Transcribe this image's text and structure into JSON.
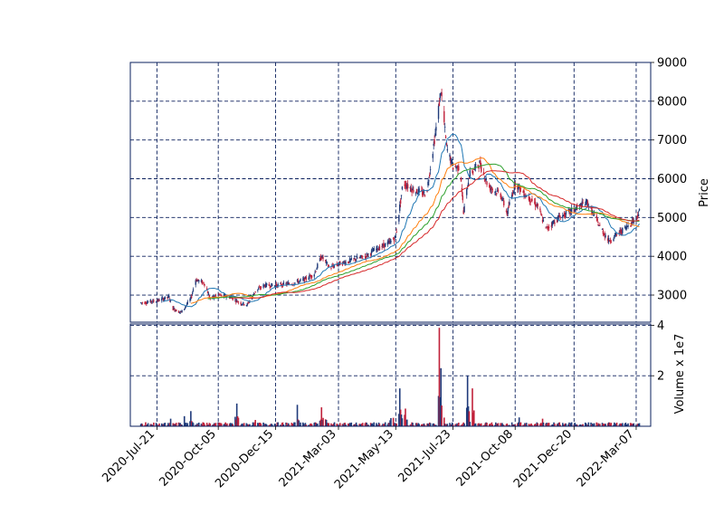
{
  "chart_data": {
    "type": "candlestick",
    "style": "mplfinance-like, dashed grid, red/blue candles",
    "colors": {
      "frame": "#0a1f5c",
      "grid": "#0a1f5c",
      "up": "#1f3a7a",
      "down": "#c0213a",
      "ma_blue": "#1f77b4",
      "ma_orange": "#ff7f0e",
      "ma_green": "#2ca02c",
      "ma_red": "#d62728"
    },
    "x_ticks": [
      "2020-Jul-21",
      "2020-Oct-05",
      "2020-Dec-15",
      "2021-Mar-03",
      "2021-May-13",
      "2021-Jul-23",
      "2021-Oct-08",
      "2021-Dec-20",
      "2022-Mar-07"
    ],
    "x_range": [
      "2020-Jun-18",
      "2022-Mar-25"
    ],
    "price_panel": {
      "ylabel": "Price",
      "ylim": [
        2300,
        9000
      ],
      "yticks": [
        3000,
        4000,
        5000,
        6000,
        7000,
        8000,
        9000
      ],
      "grid": true,
      "axis_side": "right"
    },
    "volume_panel": {
      "ylabel": "Volume x 1e7",
      "ylim": [
        0,
        4.05
      ],
      "yticks": [
        2,
        4
      ],
      "grid": true,
      "axis_side": "right"
    },
    "price_path": [
      [
        "2020-Jul-01",
        2800
      ],
      [
        "2020-Jul-21",
        2850
      ],
      [
        "2020-Aug-05",
        2950
      ],
      [
        "2020-Aug-10",
        2650
      ],
      [
        "2020-Aug-20",
        2550
      ],
      [
        "2020-Sep-01",
        2900
      ],
      [
        "2020-Sep-07",
        3400
      ],
      [
        "2020-Sep-18",
        3300
      ],
      [
        "2020-Sep-25",
        2900
      ],
      [
        "2020-Oct-05",
        3000
      ],
      [
        "2020-Oct-20",
        2950
      ],
      [
        "2020-Nov-01",
        2800
      ],
      [
        "2020-Nov-10",
        2750
      ],
      [
        "2020-Nov-20",
        3100
      ],
      [
        "2020-Dec-01",
        3250
      ],
      [
        "2020-Dec-15",
        3250
      ],
      [
        "2021-Jan-05",
        3300
      ],
      [
        "2021-Jan-20",
        3400
      ],
      [
        "2021-Feb-01",
        3550
      ],
      [
        "2021-Feb-10",
        4000
      ],
      [
        "2021-Feb-20",
        3700
      ],
      [
        "2021-Mar-03",
        3800
      ],
      [
        "2021-Mar-20",
        3900
      ],
      [
        "2021-Apr-05",
        4000
      ],
      [
        "2021-Apr-20",
        4200
      ],
      [
        "2021-May-05",
        4350
      ],
      [
        "2021-May-13",
        4500
      ],
      [
        "2021-May-22",
        5900
      ],
      [
        "2021-Jun-05",
        5700
      ],
      [
        "2021-Jun-20",
        5600
      ],
      [
        "2021-Jul-02",
        7300
      ],
      [
        "2021-Jul-08",
        8300
      ],
      [
        "2021-Jul-15",
        6800
      ],
      [
        "2021-Jul-23",
        6300
      ],
      [
        "2021-Aug-01",
        6300
      ],
      [
        "2021-Aug-05",
        5100
      ],
      [
        "2021-Aug-12",
        6100
      ],
      [
        "2021-Aug-25",
        6400
      ],
      [
        "2021-Sep-05",
        5800
      ],
      [
        "2021-Sep-20",
        5600
      ],
      [
        "2021-Sep-28",
        5100
      ],
      [
        "2021-Oct-08",
        5900
      ],
      [
        "2021-Oct-20",
        5600
      ],
      [
        "2021-Nov-05",
        5300
      ],
      [
        "2021-Nov-15",
        4700
      ],
      [
        "2021-Dec-01",
        5000
      ],
      [
        "2021-Dec-20",
        5200
      ],
      [
        "2022-Jan-05",
        5400
      ],
      [
        "2022-Jan-20",
        4800
      ],
      [
        "2022-Feb-01",
        4400
      ],
      [
        "2022-Feb-20",
        4700
      ],
      [
        "2022-Mar-07",
        5000
      ],
      [
        "2022-Mar-12",
        5200
      ]
    ],
    "volume_spikes": [
      [
        "2020-Aug-07",
        0.3
      ],
      [
        "2020-Aug-24",
        0.4
      ],
      [
        "2020-Sep-01",
        0.6
      ],
      [
        "2020-Oct-28",
        0.9
      ],
      [
        "2020-Nov-20",
        0.25
      ],
      [
        "2021-Jan-11",
        0.85
      ],
      [
        "2021-Feb-10",
        0.75
      ],
      [
        "2021-Feb-14",
        0.7
      ],
      [
        "2021-May-08",
        0.75
      ],
      [
        "2021-May-18",
        1.5
      ],
      [
        "2021-May-22",
        1.2
      ],
      [
        "2021-May-25",
        0.7
      ],
      [
        "2021-Jul-06",
        3.9
      ],
      [
        "2021-Jul-08",
        2.3
      ],
      [
        "2021-Jul-10",
        1.1
      ],
      [
        "2021-Aug-10",
        2.0
      ],
      [
        "2021-Aug-12",
        0.5
      ],
      [
        "2021-Aug-16",
        1.5
      ],
      [
        "2021-Oct-13",
        0.35
      ],
      [
        "2021-Nov-11",
        0.3
      ]
    ],
    "moving_averages": [
      {
        "color": "ma_blue",
        "window": 20
      },
      {
        "color": "ma_orange",
        "window": 45
      },
      {
        "color": "ma_green",
        "window": 60
      },
      {
        "color": "ma_red",
        "window": 80
      }
    ]
  }
}
